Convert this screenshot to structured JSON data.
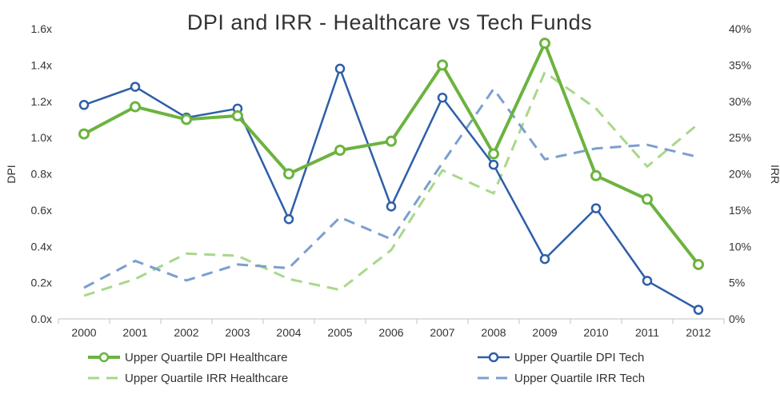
{
  "chart_data": {
    "type": "line",
    "title": "DPI and IRR - Healthcare vs Tech Funds",
    "ylabel": "DPI",
    "y2label": "IRR",
    "categories": [
      "2000",
      "2001",
      "2002",
      "2003",
      "2004",
      "2005",
      "2006",
      "2007",
      "2008",
      "2009",
      "2010",
      "2011",
      "2012"
    ],
    "ylim": [
      0,
      1.6
    ],
    "y2lim": [
      0,
      40
    ],
    "yticks": [
      "0.0x",
      "0.2x",
      "0.4x",
      "0.6x",
      "0.8x",
      "1.0x",
      "1.2x",
      "1.4x",
      "1.6x"
    ],
    "y2ticks": [
      "0%",
      "5%",
      "10%",
      "15%",
      "20%",
      "25%",
      "30%",
      "35%",
      "40%"
    ],
    "grid": false,
    "legend_position": "bottom",
    "series": [
      {
        "name": "Upper Quartile DPI Healthcare",
        "axis": "left",
        "style": "solid-marker",
        "color": "#6cb33f",
        "values": [
          1.02,
          1.17,
          1.1,
          1.12,
          0.8,
          0.93,
          0.98,
          1.4,
          0.91,
          1.52,
          0.79,
          0.66,
          0.3
        ]
      },
      {
        "name": "Upper Quartile DPI Tech",
        "axis": "left",
        "style": "solid-marker",
        "color": "#2e5ea8",
        "values": [
          1.18,
          1.28,
          1.11,
          1.16,
          0.55,
          1.38,
          0.62,
          1.22,
          0.85,
          0.33,
          0.61,
          0.21,
          0.05
        ]
      },
      {
        "name": "Upper Quartile IRR Healthcare",
        "axis": "right",
        "style": "dashed",
        "color": "#a8d88a",
        "values": [
          3.2,
          5.5,
          9.0,
          8.7,
          5.5,
          4.0,
          9.5,
          20.5,
          17.3,
          34.0,
          29.0,
          21.0,
          26.9
        ]
      },
      {
        "name": "Upper Quartile IRR Tech",
        "axis": "right",
        "style": "dashed",
        "color": "#7b9fcf",
        "values": [
          4.3,
          8.0,
          5.3,
          7.5,
          7.0,
          14.0,
          11.0,
          21.5,
          31.7,
          22.0,
          23.5,
          24.0,
          22.3
        ]
      }
    ]
  }
}
